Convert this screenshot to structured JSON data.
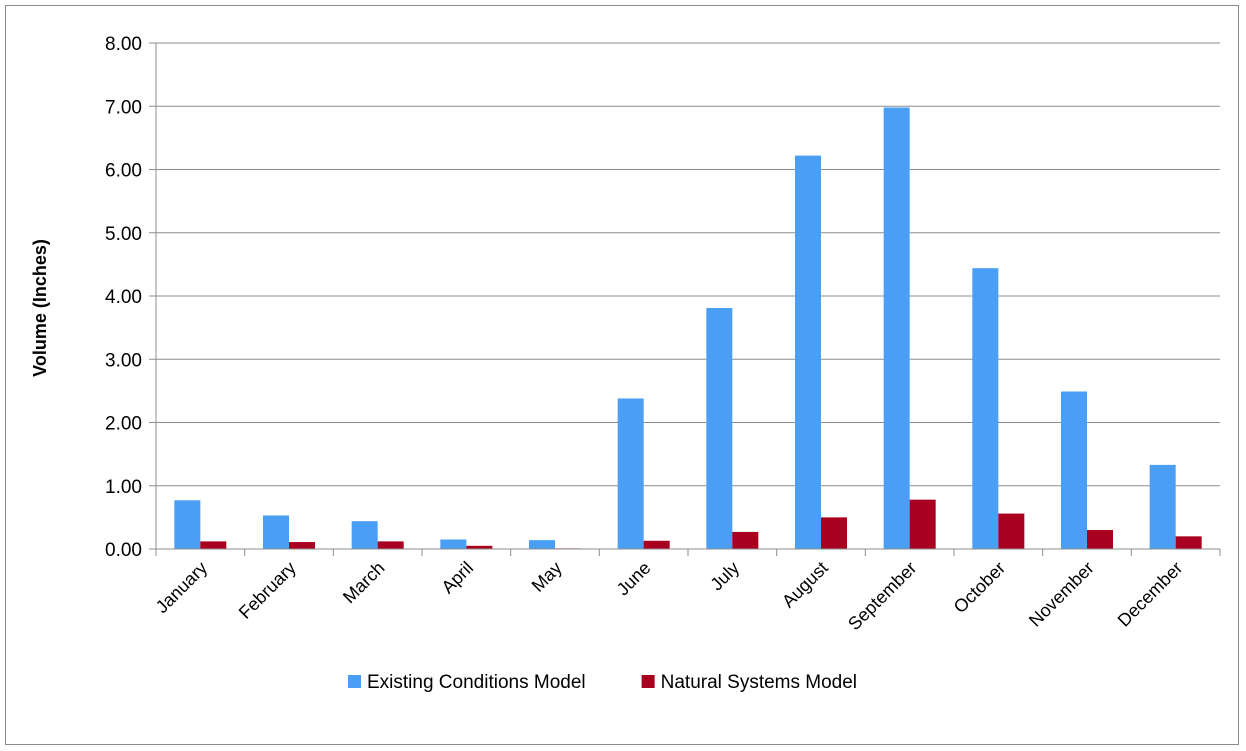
{
  "chart_data": {
    "type": "bar",
    "title": "",
    "xlabel": "",
    "ylabel": "Volume (Inches)",
    "ylim": [
      0,
      8
    ],
    "ytick_step": 1,
    "ytick_format_decimals": 2,
    "grid": true,
    "legend_position": "bottom",
    "categories": [
      "January",
      "February",
      "March",
      "April",
      "May",
      "June",
      "July",
      "August",
      "September",
      "October",
      "November",
      "December"
    ],
    "series": [
      {
        "name": "Existing Conditions Model",
        "color": "#4a9ff5",
        "values": [
          0.77,
          0.53,
          0.44,
          0.15,
          0.14,
          2.38,
          3.81,
          6.22,
          6.98,
          4.44,
          2.49,
          1.33
        ]
      },
      {
        "name": "Natural Systems Model",
        "color": "#a8001e",
        "values": [
          0.12,
          0.11,
          0.12,
          0.05,
          0.01,
          0.13,
          0.27,
          0.5,
          0.78,
          0.56,
          0.3,
          0.2
        ]
      }
    ]
  }
}
